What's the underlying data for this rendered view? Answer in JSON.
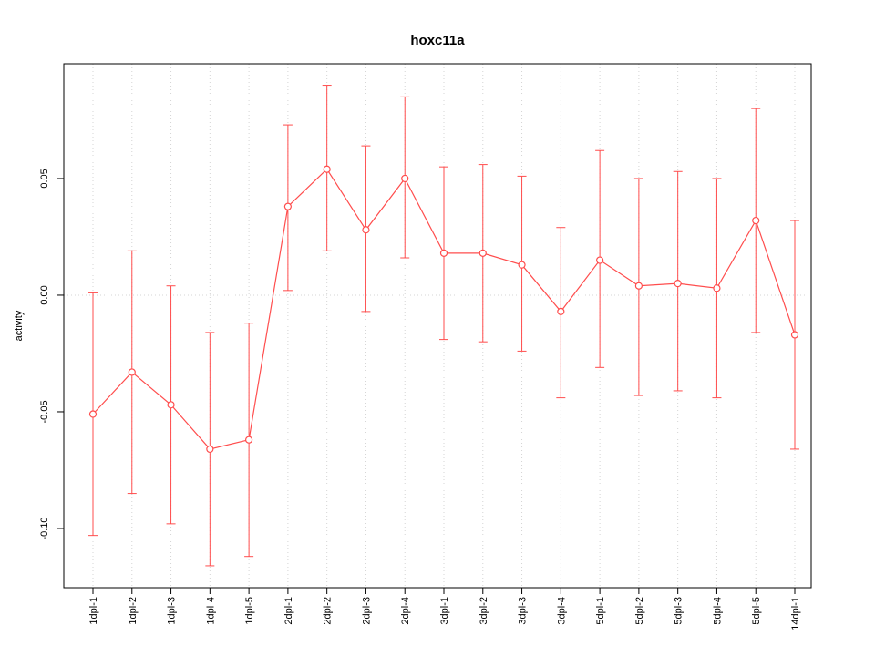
{
  "chart_data": {
    "type": "line",
    "title": "hoxc11a",
    "xlabel": "",
    "ylabel": "activity",
    "categories": [
      "1dpl-1",
      "1dpl-2",
      "1dpl-3",
      "1dpl-4",
      "1dpl-5",
      "2dpl-1",
      "2dpl-2",
      "2dpl-3",
      "2dpl-4",
      "3dpl-1",
      "3dpl-2",
      "3dpl-3",
      "3dpl-4",
      "5dpl-1",
      "5dpl-2",
      "5dpl-3",
      "5dpl-4",
      "5dpl-5",
      "14dpl-1"
    ],
    "values": [
      -0.051,
      -0.033,
      -0.047,
      -0.066,
      -0.062,
      0.038,
      0.054,
      0.028,
      0.05,
      0.018,
      0.018,
      0.013,
      -0.007,
      0.015,
      0.004,
      0.005,
      0.003,
      0.032,
      -0.017
    ],
    "error_upper": [
      0.001,
      0.019,
      0.004,
      -0.016,
      -0.012,
      0.073,
      0.09,
      0.064,
      0.085,
      0.055,
      0.056,
      0.051,
      0.029,
      0.062,
      0.05,
      0.053,
      0.05,
      0.08,
      0.032
    ],
    "error_lower": [
      -0.103,
      -0.085,
      -0.098,
      -0.116,
      -0.112,
      0.002,
      0.019,
      -0.007,
      0.016,
      -0.019,
      -0.02,
      -0.024,
      -0.044,
      -0.031,
      -0.043,
      -0.041,
      -0.044,
      -0.016,
      -0.066
    ],
    "yticks": [
      0.05,
      0.0,
      -0.05,
      -0.1
    ],
    "ytick_labels": [
      "0.05",
      "0.00",
      "-0.05",
      "-0.10"
    ],
    "ylim": [
      -0.1254,
      0.0992
    ],
    "grid": true,
    "zero_line": true,
    "legend": "none",
    "series_color": "#ff4d4d",
    "grid_color": "#d4d4d4",
    "axis_color": "#000000"
  }
}
